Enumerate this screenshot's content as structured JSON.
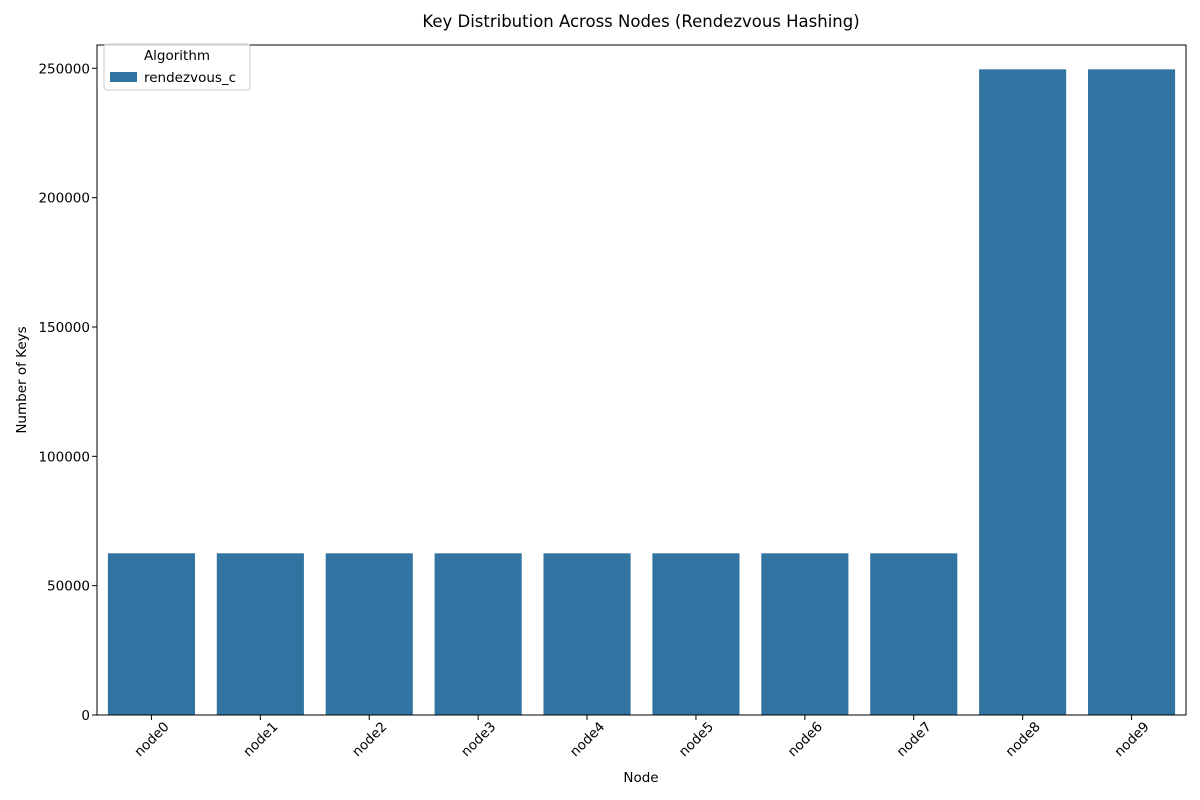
{
  "chart_data": {
    "type": "bar",
    "title": "Key Distribution Across Nodes (Rendezvous Hashing)",
    "xlabel": "Node",
    "ylabel": "Number of Keys",
    "categories": [
      "node0",
      "node1",
      "node2",
      "node3",
      "node4",
      "node5",
      "node6",
      "node7",
      "node8",
      "node9"
    ],
    "series": [
      {
        "name": "rendezvous_c",
        "values": [
          62500,
          62500,
          62500,
          62500,
          62500,
          62500,
          62500,
          62500,
          249600,
          249600
        ]
      }
    ],
    "ylim": [
      0,
      259000
    ],
    "yticks": [
      0,
      50000,
      100000,
      150000,
      200000,
      250000
    ],
    "ytick_labels": [
      "0",
      "50000",
      "100000",
      "150000",
      "200000",
      "250000"
    ],
    "grid": false,
    "legend": {
      "title": "Algorithm",
      "placement": "top-left"
    },
    "colors": {
      "bar": "#3274a1",
      "background": "#ffffff",
      "axis": "#000000"
    }
  }
}
